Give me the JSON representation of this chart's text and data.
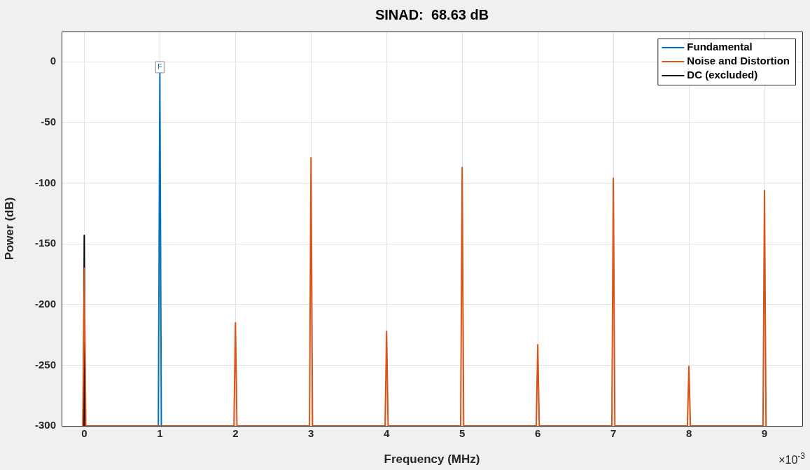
{
  "chart_data": {
    "type": "line",
    "title": "SINAD:  68.63 dB",
    "xlabel": "Frequency (MHz)",
    "ylabel": "Power (dB)",
    "xlim": [
      -0.3,
      9.5
    ],
    "ylim": [
      -300,
      25
    ],
    "xticks": [
      0,
      1,
      2,
      3,
      4,
      5,
      6,
      7,
      8,
      9
    ],
    "yticks": [
      -300,
      -250,
      -200,
      -150,
      -100,
      -50,
      0
    ],
    "grid": true,
    "legend": "top right",
    "marker": "none",
    "line_style": "solid",
    "annotations": [
      "×10$^{-3}$",
      {
        "text": "F",
        "x": 1,
        "y": -9
      }
    ],
    "series": [
      {
        "name": "Noise and Distortion",
        "color": "#d95319",
        "x": [
          -0.02,
          0,
          0.02,
          1.98,
          2,
          2.02,
          2.98,
          3,
          3.02,
          3.98,
          4,
          4.02,
          4.98,
          5,
          5.02,
          5.98,
          6,
          6.02,
          6.98,
          7,
          7.02,
          7.98,
          8,
          8.02,
          8.98,
          9,
          9.02
        ],
        "values": [
          -300,
          -170,
          -300,
          -300,
          -215,
          -300,
          -300,
          -79,
          -300,
          -300,
          -222,
          -300,
          -300,
          -87,
          -300,
          -300,
          -233,
          -300,
          -300,
          -96,
          -300,
          -300,
          -251,
          -300,
          -300,
          -106,
          -300
        ]
      },
      {
        "name": "Fundamental",
        "color": "#0072bd",
        "x": [
          0.98,
          1,
          1.02
        ],
        "values": [
          -300,
          -9,
          -300
        ]
      },
      {
        "name": "DC (excluded)",
        "color": "#000000",
        "x": [
          -0.01,
          0,
          0.01
        ],
        "values": [
          -300,
          -143,
          -300
        ]
      }
    ]
  }
}
